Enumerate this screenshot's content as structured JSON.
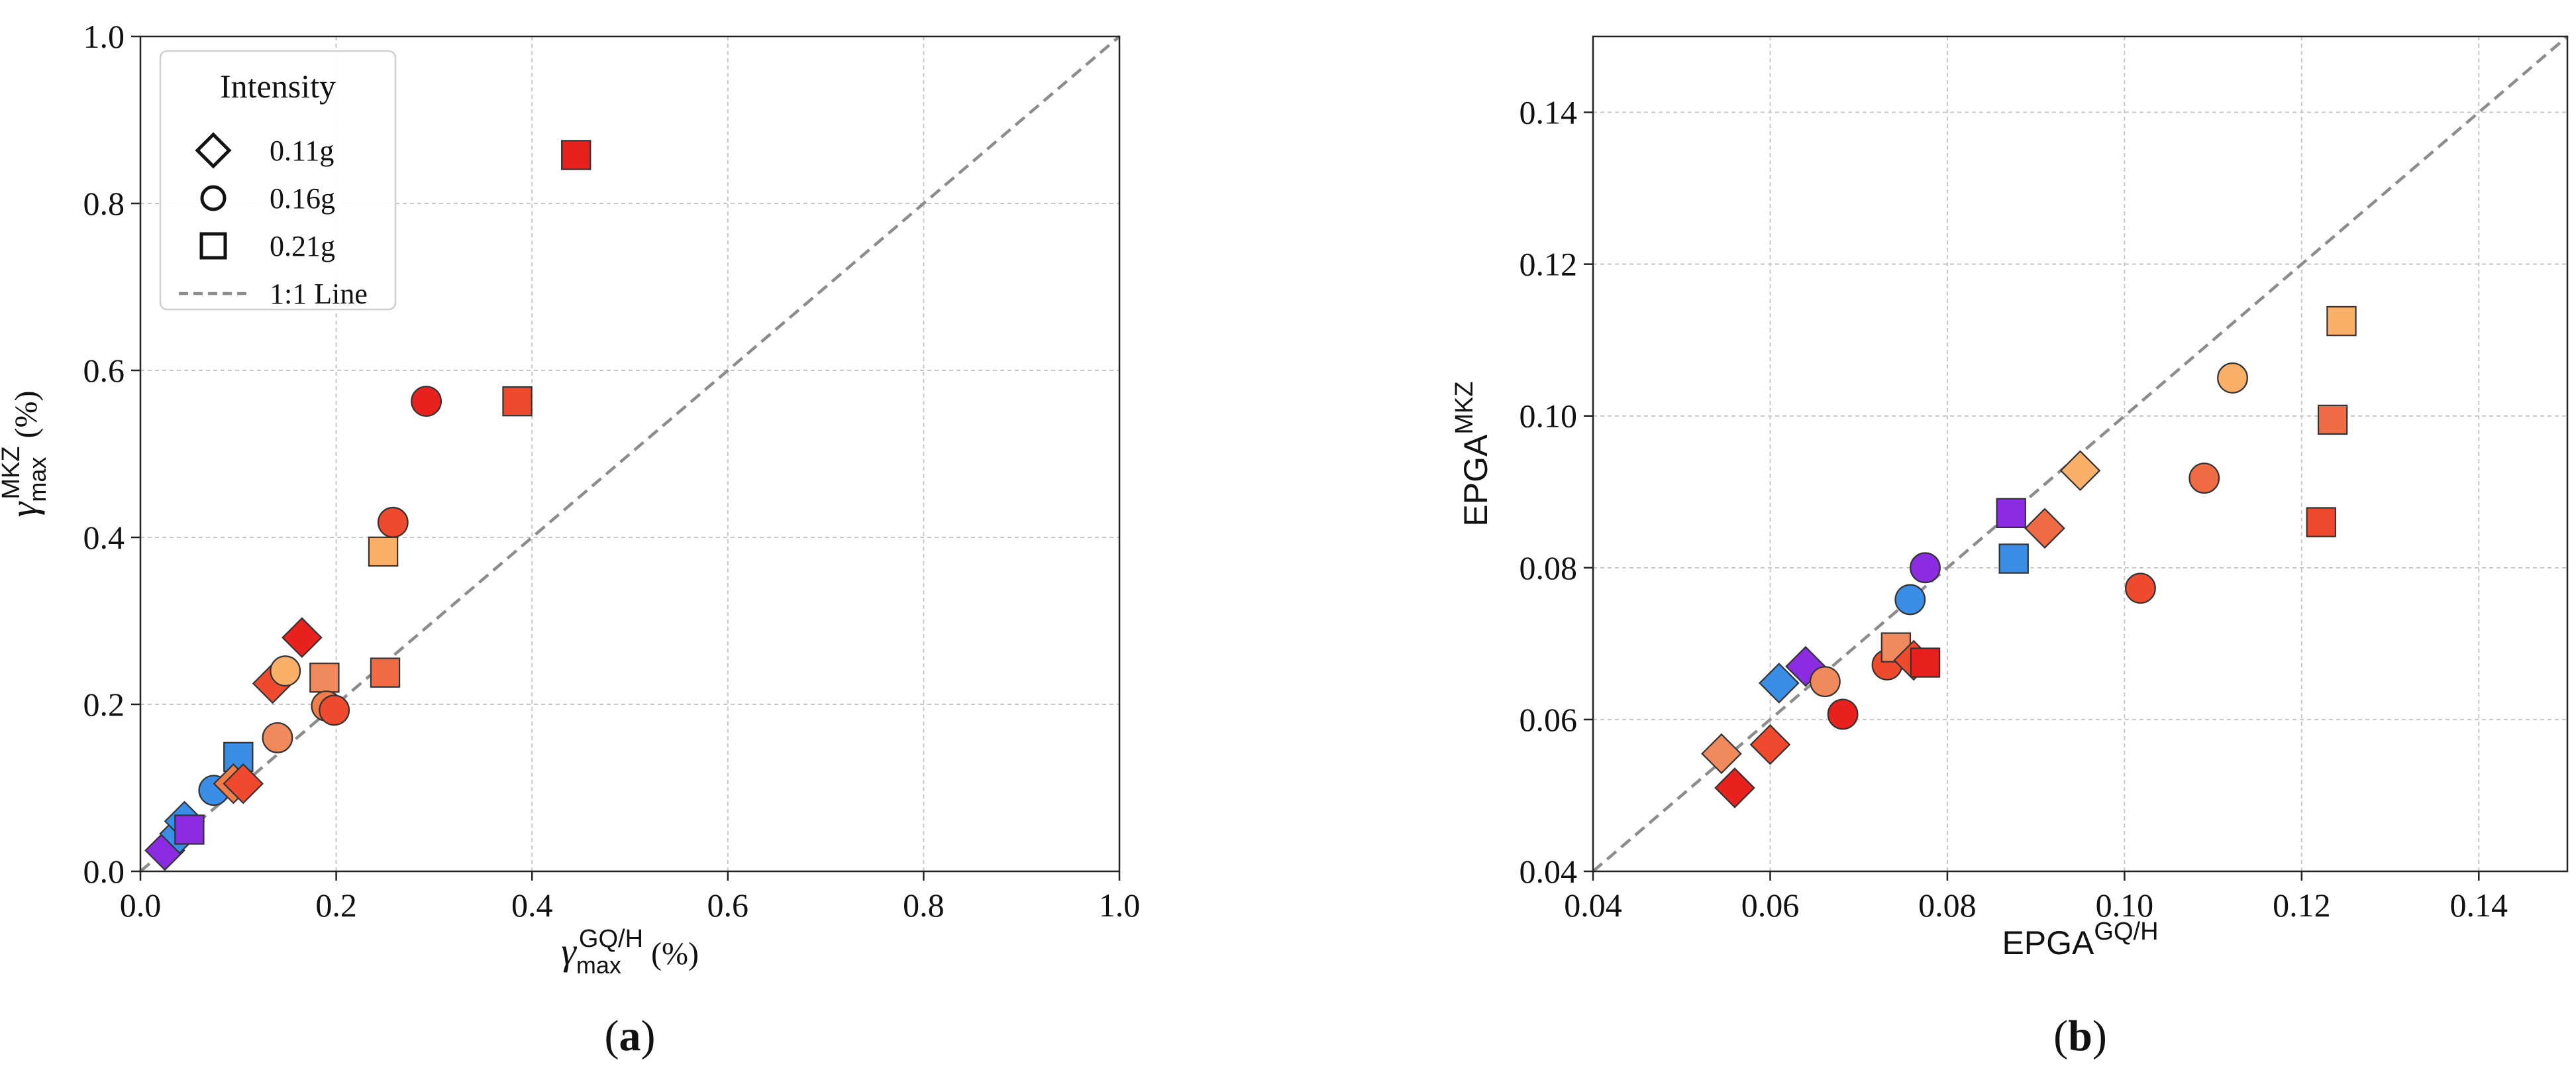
{
  "chart_data": [
    {
      "type": "scatter",
      "panel_label": "(a)",
      "xlabel": {
        "symbol": "γ",
        "sub": "max",
        "sup": "GQ/H",
        "unit": " (%)"
      },
      "ylabel": {
        "symbol": "γ",
        "sub": "max",
        "sup": "MKZ",
        "unit": " (%)"
      },
      "xlim": [
        0.0,
        1.0
      ],
      "ylim": [
        0.0,
        1.0
      ],
      "xticks": [
        "0.0",
        "0.2",
        "0.4",
        "0.6",
        "0.8",
        "1.0"
      ],
      "yticks": [
        "0.0",
        "0.2",
        "0.4",
        "0.6",
        "0.8",
        "1.0"
      ],
      "grid": true,
      "reference_line": {
        "label": "1:1 Line",
        "style": "dashed",
        "color": "#8c8c8c"
      },
      "legend": {
        "placement": "top-left",
        "title": "Intensity",
        "entries": [
          {
            "marker": "diamond",
            "label": "0.11g"
          },
          {
            "marker": "circle",
            "label": "0.16g"
          },
          {
            "marker": "square",
            "label": "0.21g"
          },
          {
            "marker": "dashed-line",
            "label": "1:1 Line"
          }
        ]
      },
      "points": [
        {
          "x": 0.025,
          "y": 0.025,
          "marker": "diamond",
          "color": "#8b2be2"
        },
        {
          "x": 0.04,
          "y": 0.045,
          "marker": "diamond",
          "color": "#3a8ee6"
        },
        {
          "x": 0.045,
          "y": 0.06,
          "marker": "diamond",
          "color": "#3a8ee6"
        },
        {
          "x": 0.05,
          "y": 0.05,
          "marker": "square",
          "color": "#8b2be2"
        },
        {
          "x": 0.075,
          "y": 0.097,
          "marker": "circle",
          "color": "#3a8ee6"
        },
        {
          "x": 0.1,
          "y": 0.137,
          "marker": "square",
          "color": "#3a8ee6"
        },
        {
          "x": 0.095,
          "y": 0.105,
          "marker": "diamond",
          "color": "#f07c4a"
        },
        {
          "x": 0.105,
          "y": 0.105,
          "marker": "diamond",
          "color": "#f04a2e"
        },
        {
          "x": 0.135,
          "y": 0.225,
          "marker": "diamond",
          "color": "#f04a2e"
        },
        {
          "x": 0.14,
          "y": 0.16,
          "marker": "circle",
          "color": "#f08a5d"
        },
        {
          "x": 0.148,
          "y": 0.24,
          "marker": "circle",
          "color": "#fbb06a"
        },
        {
          "x": 0.165,
          "y": 0.28,
          "marker": "diamond",
          "color": "#e8211e"
        },
        {
          "x": 0.188,
          "y": 0.232,
          "marker": "square",
          "color": "#f08a5d"
        },
        {
          "x": 0.19,
          "y": 0.198,
          "marker": "circle",
          "color": "#f07c4a"
        },
        {
          "x": 0.198,
          "y": 0.193,
          "marker": "circle",
          "color": "#f04a2e"
        },
        {
          "x": 0.248,
          "y": 0.383,
          "marker": "square",
          "color": "#fbb06a"
        },
        {
          "x": 0.25,
          "y": 0.238,
          "marker": "square",
          "color": "#f06a44"
        },
        {
          "x": 0.258,
          "y": 0.418,
          "marker": "circle",
          "color": "#f04a2e"
        },
        {
          "x": 0.292,
          "y": 0.563,
          "marker": "circle",
          "color": "#e8211e"
        },
        {
          "x": 0.385,
          "y": 0.563,
          "marker": "square",
          "color": "#f04a2e"
        },
        {
          "x": 0.445,
          "y": 0.858,
          "marker": "square",
          "color": "#e8211e"
        }
      ]
    },
    {
      "type": "scatter",
      "panel_label": "(b)",
      "xlabel": {
        "symbol": "EPGA",
        "sub": "",
        "sup": "GQ/H",
        "unit": ""
      },
      "ylabel": {
        "symbol": "EPGA",
        "sub": "",
        "sup": "MKZ",
        "unit": ""
      },
      "xlim": [
        0.04,
        0.15
      ],
      "ylim": [
        0.04,
        0.15
      ],
      "xticks": [
        "0.04",
        "0.06",
        "0.08",
        "0.10",
        "0.12",
        "0.14"
      ],
      "yticks": [
        "0.04",
        "0.06",
        "0.08",
        "0.10",
        "0.12",
        "0.14"
      ],
      "grid": true,
      "reference_line": {
        "label": "1:1 Line",
        "style": "dashed",
        "color": "#8c8c8c"
      },
      "points": [
        {
          "x": 0.0545,
          "y": 0.0555,
          "marker": "diamond",
          "color": "#f08a5d"
        },
        {
          "x": 0.056,
          "y": 0.051,
          "marker": "diamond",
          "color": "#e8211e"
        },
        {
          "x": 0.06,
          "y": 0.0567,
          "marker": "diamond",
          "color": "#f04a2e"
        },
        {
          "x": 0.061,
          "y": 0.0648,
          "marker": "diamond",
          "color": "#3a8ee6"
        },
        {
          "x": 0.064,
          "y": 0.067,
          "marker": "diamond",
          "color": "#8b2be2"
        },
        {
          "x": 0.0662,
          "y": 0.065,
          "marker": "circle",
          "color": "#f08a5d"
        },
        {
          "x": 0.0682,
          "y": 0.0607,
          "marker": "circle",
          "color": "#e8211e"
        },
        {
          "x": 0.0732,
          "y": 0.0672,
          "marker": "circle",
          "color": "#f04a2e"
        },
        {
          "x": 0.0742,
          "y": 0.0695,
          "marker": "square",
          "color": "#f08a5d"
        },
        {
          "x": 0.0762,
          "y": 0.0678,
          "marker": "diamond",
          "color": "#f04a2e"
        },
        {
          "x": 0.0775,
          "y": 0.0675,
          "marker": "square",
          "color": "#e8211e"
        },
        {
          "x": 0.0758,
          "y": 0.0758,
          "marker": "circle",
          "color": "#3a8ee6"
        },
        {
          "x": 0.0775,
          "y": 0.08,
          "marker": "circle",
          "color": "#8b2be2"
        },
        {
          "x": 0.0872,
          "y": 0.0872,
          "marker": "square",
          "color": "#8b2be2"
        },
        {
          "x": 0.0875,
          "y": 0.0812,
          "marker": "square",
          "color": "#3a8ee6"
        },
        {
          "x": 0.091,
          "y": 0.0852,
          "marker": "diamond",
          "color": "#f06a44"
        },
        {
          "x": 0.095,
          "y": 0.0928,
          "marker": "diamond",
          "color": "#fbb06a"
        },
        {
          "x": 0.1018,
          "y": 0.0773,
          "marker": "circle",
          "color": "#f04a2e"
        },
        {
          "x": 0.109,
          "y": 0.0918,
          "marker": "circle",
          "color": "#f06a44"
        },
        {
          "x": 0.1122,
          "y": 0.105,
          "marker": "circle",
          "color": "#fbb06a"
        },
        {
          "x": 0.1222,
          "y": 0.086,
          "marker": "square",
          "color": "#f04a2e"
        },
        {
          "x": 0.1235,
          "y": 0.0995,
          "marker": "square",
          "color": "#f06a44"
        },
        {
          "x": 0.1245,
          "y": 0.1125,
          "marker": "square",
          "color": "#fbb06a"
        }
      ]
    }
  ]
}
